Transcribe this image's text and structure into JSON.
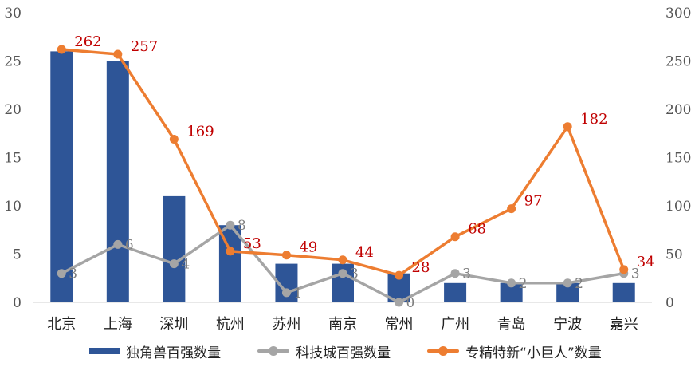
{
  "colors": {
    "bar": "#2e5597",
    "gray": "#a5a5a5",
    "orange": "#ed7d31",
    "label_red": "#c00000",
    "label_gray": "#7f7f7f",
    "axis_text": "#555555",
    "cat_text": "#222222"
  },
  "chart_data": {
    "type": "bar",
    "title": "",
    "categories": [
      "北京",
      "上海",
      "深圳",
      "杭州",
      "苏州",
      "南京",
      "常州",
      "广州",
      "青岛",
      "宁波",
      "嘉兴"
    ],
    "series": [
      {
        "name": "独角兽百强数量",
        "type": "bar",
        "axis": "left",
        "values": [
          26,
          25,
          11,
          8,
          4,
          4,
          3,
          2,
          2,
          2,
          2
        ]
      },
      {
        "name": "科技城百强数量",
        "type": "line",
        "axis": "left",
        "values": [
          3,
          6,
          4,
          8,
          1,
          3,
          0,
          3,
          2,
          2,
          3
        ]
      },
      {
        "name": "专精特新“小巨人”数量",
        "type": "line",
        "axis": "right",
        "values": [
          262,
          257,
          169,
          53,
          49,
          44,
          28,
          68,
          97,
          182,
          34
        ]
      }
    ],
    "y_left": {
      "min": 0,
      "max": 30,
      "ticks": [
        0,
        5,
        10,
        15,
        20,
        25,
        30
      ]
    },
    "y_right": {
      "min": 0,
      "max": 300,
      "ticks": [
        0,
        50,
        100,
        150,
        200,
        250,
        300
      ]
    },
    "grid": false,
    "legend_position": "bottom"
  },
  "legend": [
    {
      "label": "独角兽百强数量",
      "kind": "bar"
    },
    {
      "label": "科技城百强数量",
      "kind": "line-gray"
    },
    {
      "label": "专精特新“小巨人”数量",
      "kind": "line-orange"
    }
  ]
}
